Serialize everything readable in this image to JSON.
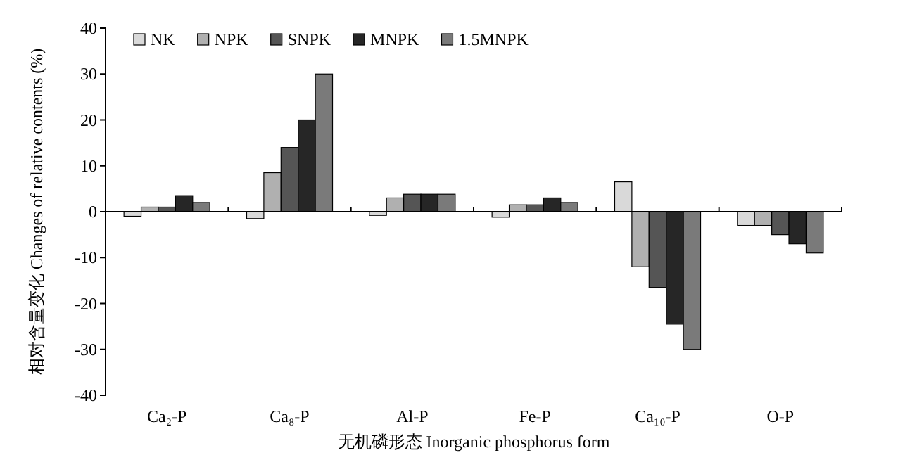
{
  "chart_data": {
    "type": "bar",
    "xlabel": "无机磷形态 Inorganic phosphorus form",
    "ylabel": "相对含量变化 Changes of relative contents (%)",
    "categories": [
      "Ca₂-P",
      "Ca₈-P",
      "Al-P",
      "Fe-P",
      "Ca₁₀-P",
      "O-P"
    ],
    "series": [
      {
        "name": "NK",
        "color": "#d9d9d9",
        "values": [
          -1,
          -1.5,
          -0.8,
          -1.2,
          6.5,
          -3
        ]
      },
      {
        "name": "NPK",
        "color": "#b0b0b0",
        "values": [
          1,
          8.5,
          3,
          1.5,
          -12,
          -3
        ]
      },
      {
        "name": "SNPK",
        "color": "#555555",
        "values": [
          1,
          14,
          3.8,
          1.5,
          -16.5,
          -5
        ]
      },
      {
        "name": "MNPK",
        "color": "#262626",
        "values": [
          3.5,
          20,
          3.8,
          3,
          -24.5,
          -7
        ]
      },
      {
        "name": "1.5MNPK",
        "color": "#7a7a7a",
        "values": [
          2,
          30,
          3.8,
          2,
          -30,
          -9
        ]
      }
    ],
    "ylim": [
      -40,
      40
    ],
    "yticks": [
      -40,
      -30,
      -20,
      -10,
      0,
      10,
      20,
      30,
      40
    ],
    "legend": "top left"
  }
}
